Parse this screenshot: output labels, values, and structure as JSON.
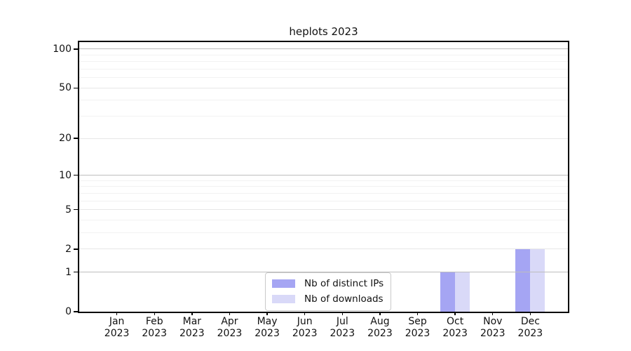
{
  "title": "heplots 2023",
  "legend": {
    "items": [
      {
        "label": "Nb of distinct IPs",
        "color": "#a5a5f3"
      },
      {
        "label": "Nb of downloads",
        "color": "#d9d9f8"
      }
    ]
  },
  "axes": {
    "y_tick_labels": [
      "0",
      "1",
      "2",
      "5",
      "10",
      "20",
      "50",
      "100"
    ],
    "x_tick_labels_line1": [
      "Jan",
      "Feb",
      "Mar",
      "Apr",
      "May",
      "Jun",
      "Jul",
      "Aug",
      "Sep",
      "Oct",
      "Nov",
      "Dec"
    ],
    "x_tick_labels_line2": [
      "2023",
      "2023",
      "2023",
      "2023",
      "2023",
      "2023",
      "2023",
      "2023",
      "2023",
      "2023",
      "2023",
      "2023"
    ]
  },
  "colors": {
    "background": "#ffffff",
    "axis": "#000000",
    "text": "#111111",
    "grid_decade": "#bdbdbd",
    "grid_major": "#e7e7e7",
    "grid_minor": "#f2f2f2"
  },
  "chart_data": {
    "type": "bar",
    "title": "heplots 2023",
    "categories": [
      "Jan 2023",
      "Feb 2023",
      "Mar 2023",
      "Apr 2023",
      "May 2023",
      "Jun 2023",
      "Jul 2023",
      "Aug 2023",
      "Sep 2023",
      "Oct 2023",
      "Nov 2023",
      "Dec 2023"
    ],
    "series": [
      {
        "name": "Nb of distinct IPs",
        "color": "#a5a5f3",
        "values": [
          0,
          0,
          0,
          0,
          0,
          0,
          0,
          0,
          0,
          1,
          0,
          2
        ]
      },
      {
        "name": "Nb of downloads",
        "color": "#d9d9f8",
        "values": [
          0,
          0,
          0,
          0,
          0,
          0,
          0,
          0,
          0,
          1,
          0,
          2
        ]
      }
    ],
    "xlabel": "",
    "ylabel": "",
    "y_scale": "log1p",
    "ylim": [
      0,
      113
    ],
    "y_ticks": [
      0,
      1,
      2,
      5,
      10,
      20,
      50,
      100
    ],
    "y_gridlines": {
      "decade": [
        1,
        10,
        100
      ],
      "major": [
        2,
        5,
        20,
        50
      ],
      "minor": [
        3,
        4,
        6,
        7,
        8,
        9,
        30,
        40,
        60,
        70,
        80,
        90
      ]
    },
    "grid": "horizontal",
    "legend_position": "bottom-center"
  }
}
